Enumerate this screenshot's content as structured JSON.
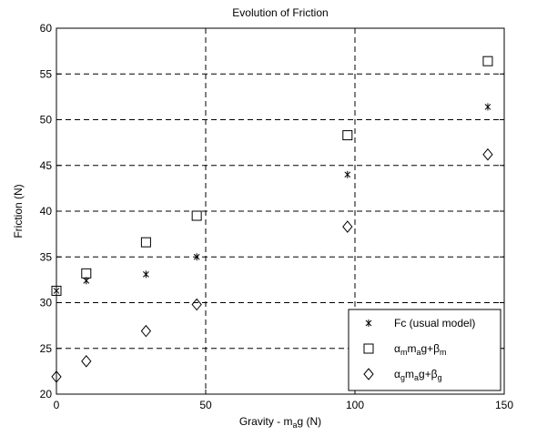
{
  "chart_data": {
    "type": "scatter",
    "title": "Evolution of Friction",
    "xlabel": {
      "main": "Gravity - m",
      "sub": "a",
      "tail": "g (N)"
    },
    "ylabel": "Friction (N)",
    "xlim": [
      0,
      150
    ],
    "ylim": [
      20,
      60
    ],
    "xticks": [
      0,
      50,
      100,
      150
    ],
    "yticks": [
      20,
      25,
      30,
      35,
      40,
      45,
      50,
      55,
      60
    ],
    "grid": "dashed",
    "legend_position": "bottom-right",
    "series": [
      {
        "name": "Fc (usual model)",
        "marker": "asterisk",
        "points": [
          [
            0,
            31.3
          ],
          [
            10,
            32.4
          ],
          [
            30,
            33.1
          ],
          [
            47,
            35.0
          ],
          [
            97.5,
            44.0
          ],
          [
            144.5,
            51.4
          ]
        ]
      },
      {
        "name": "αmmag+βm",
        "label_parts": [
          [
            "α",
            ""
          ],
          [
            "m",
            "sub"
          ],
          [
            "m",
            ""
          ],
          [
            "a",
            "sub"
          ],
          [
            "g+β",
            ""
          ],
          [
            "m",
            "sub"
          ]
        ],
        "marker": "square",
        "points": [
          [
            0,
            31.3
          ],
          [
            10,
            33.2
          ],
          [
            30,
            36.6
          ],
          [
            47,
            39.5
          ],
          [
            97.5,
            48.3
          ],
          [
            144.5,
            56.4
          ]
        ]
      },
      {
        "name": "αgmag+βg",
        "label_parts": [
          [
            "α",
            ""
          ],
          [
            "g",
            "sub"
          ],
          [
            "m",
            ""
          ],
          [
            "a",
            "sub"
          ],
          [
            "g+β",
            ""
          ],
          [
            "g",
            "sub"
          ]
        ],
        "marker": "diamond",
        "points": [
          [
            0,
            21.9
          ],
          [
            10,
            23.6
          ],
          [
            30,
            26.9
          ],
          [
            47,
            29.8
          ],
          [
            97.5,
            38.3
          ],
          [
            144.5,
            46.2
          ]
        ]
      }
    ]
  }
}
